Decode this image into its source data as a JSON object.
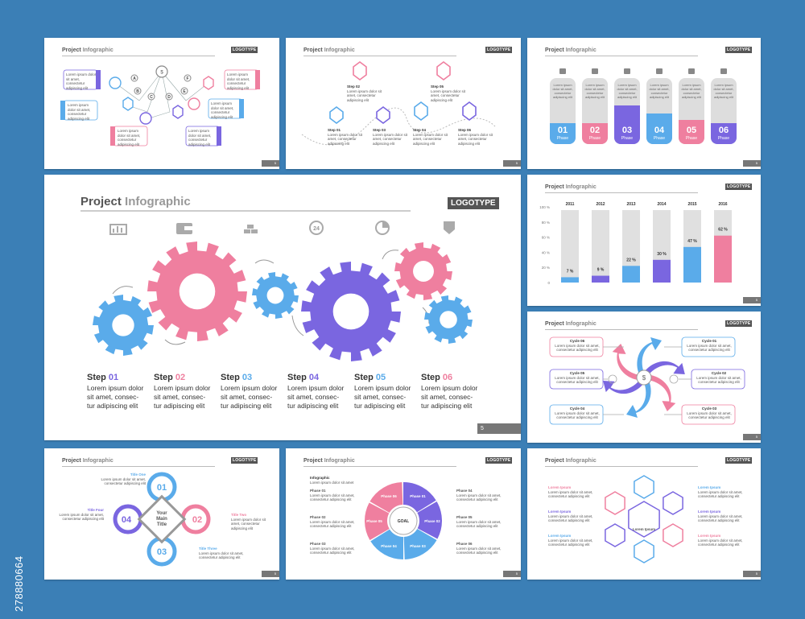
{
  "header": {
    "title_a": "Project",
    "title_b": "Infographic",
    "logotype": "LOGOTYPE"
  },
  "lorem": {
    "short": "Lorem ipsum dolor sit amet, consectetur adipiscing elit",
    "one_line": "Lorem ipsum dolor sit amet",
    "l1": "Lorem ipsum dolor",
    "l2": "sit amet, consec-",
    "l3": "tur adipiscing elit"
  },
  "watermark": "278880664",
  "colors": {
    "blue": "#5aabea",
    "pink": "#ef7f9f",
    "purple": "#7a66e0",
    "bg": "#3b7fb6"
  },
  "slide1": {
    "letters": [
      "A",
      "B",
      "C",
      "D",
      "E",
      "F"
    ],
    "page": "5"
  },
  "slide2": {
    "steps": [
      {
        "label": "Step 01"
      },
      {
        "label": "Step 02"
      },
      {
        "label": "Step 03"
      },
      {
        "label": "Step 04"
      },
      {
        "label": "Step 05"
      },
      {
        "label": "Step 06"
      }
    ],
    "page": "5"
  },
  "slide3": {
    "phases": [
      {
        "num": "01",
        "label": "Phase"
      },
      {
        "num": "02",
        "label": "Phase"
      },
      {
        "num": "03",
        "label": "Phase"
      },
      {
        "num": "04",
        "label": "Phase"
      },
      {
        "num": "05",
        "label": "Phase"
      },
      {
        "num": "06",
        "label": "Phase"
      }
    ],
    "page": "5"
  },
  "main": {
    "page": "5",
    "steps": [
      {
        "word": "Step",
        "num": "01"
      },
      {
        "word": "Step",
        "num": "02"
      },
      {
        "word": "Step",
        "num": "03"
      },
      {
        "word": "Step",
        "num": "04"
      },
      {
        "word": "Step",
        "num": "05"
      },
      {
        "word": "Step",
        "num": "06"
      }
    ]
  },
  "chart_data": {
    "type": "bar",
    "categories": [
      "2011",
      "2012",
      "2013",
      "2014",
      "2015",
      "2016"
    ],
    "values": [
      7,
      9,
      22,
      30,
      47,
      62
    ],
    "value_labels": [
      "7 %",
      "9 %",
      "22 %",
      "30 %",
      "47 %",
      "62 %"
    ],
    "yticks": [
      "0",
      "20 %",
      "40 %",
      "60 %",
      "80 %",
      "100 %"
    ],
    "ylim": [
      0,
      100
    ],
    "page": "5"
  },
  "cycle": {
    "labels": [
      "Cycle 01",
      "Cycle 02",
      "Cycle 03",
      "Cycle 04",
      "Cycle 05",
      "Cycle 06"
    ],
    "page": "5"
  },
  "venn": {
    "numbers": [
      "01",
      "02",
      "03",
      "04"
    ],
    "center": [
      "Your",
      "Main",
      "Title"
    ],
    "titles": [
      "Title One",
      "Title Two",
      "Title Three",
      "Title Four"
    ],
    "page": "5"
  },
  "wheel": {
    "infographic": "Infographic",
    "goal": "GOAL",
    "phases": [
      "Phase 01",
      "Phase 02",
      "Phase 03",
      "Phase 04",
      "Phase 05",
      "Phase 06"
    ],
    "page": "5"
  },
  "hex": {
    "items": [
      "Lorem Ipsum",
      "Lorem Ipsum",
      "Lorem Ipsum",
      "Lorem Ipsum",
      "Lorem Ipsum",
      "Lorem Ipsum"
    ],
    "center_label": "Lorem Ipsum",
    "page": "5"
  }
}
